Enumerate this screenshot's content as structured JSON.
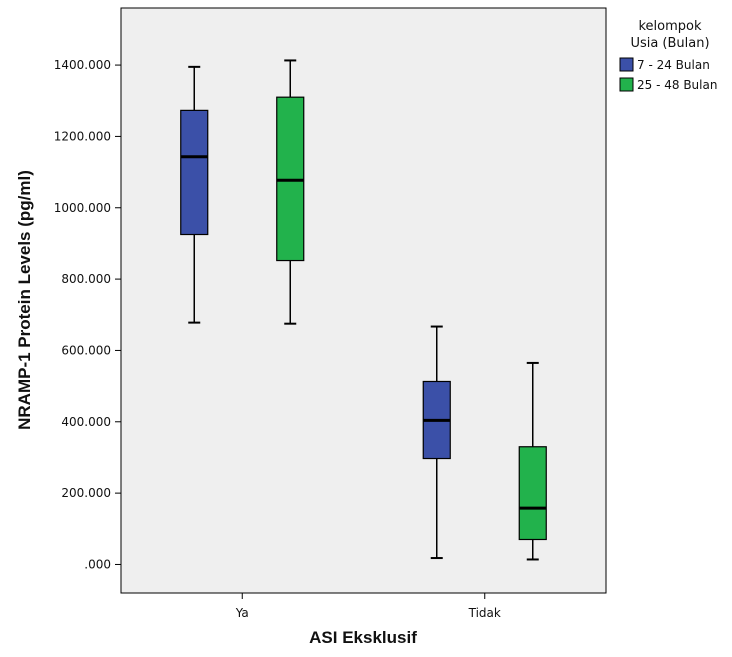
{
  "chart_data": {
    "type": "boxplot",
    "title": "",
    "xlabel": "ASI Eksklusif",
    "ylabel": "NRAMP-1 Protein Levels (pg/ml)",
    "categories": [
      "Ya",
      "Tidak"
    ],
    "ylim": [
      -80,
      1560
    ],
    "yticks": [
      0,
      200,
      400,
      600,
      800,
      1000,
      1200,
      1400
    ],
    "ytick_labels": [
      ".000",
      "200.000",
      "400.000",
      "600.000",
      "800.000",
      "1000.000",
      "1200.000",
      "1400.000"
    ],
    "grid": false,
    "legend": {
      "title_lines": [
        "kelompok",
        "Usia (Bulan)"
      ],
      "placement": "top-right-outside"
    },
    "series": [
      {
        "name": "7 - 24 Bulan",
        "color": "#3b50a8",
        "boxes": [
          {
            "min": 678,
            "q1": 925,
            "median": 1143,
            "q3": 1273,
            "max": 1395
          },
          {
            "min": 18,
            "q1": 297,
            "median": 404,
            "q3": 513,
            "max": 667
          }
        ]
      },
      {
        "name": "25 - 48 Bulan",
        "color": "#22b24c",
        "boxes": [
          {
            "min": 675,
            "q1": 852,
            "median": 1077,
            "q3": 1310,
            "max": 1413
          },
          {
            "min": 14,
            "q1": 70,
            "median": 158,
            "q3": 330,
            "max": 565
          }
        ]
      }
    ]
  }
}
